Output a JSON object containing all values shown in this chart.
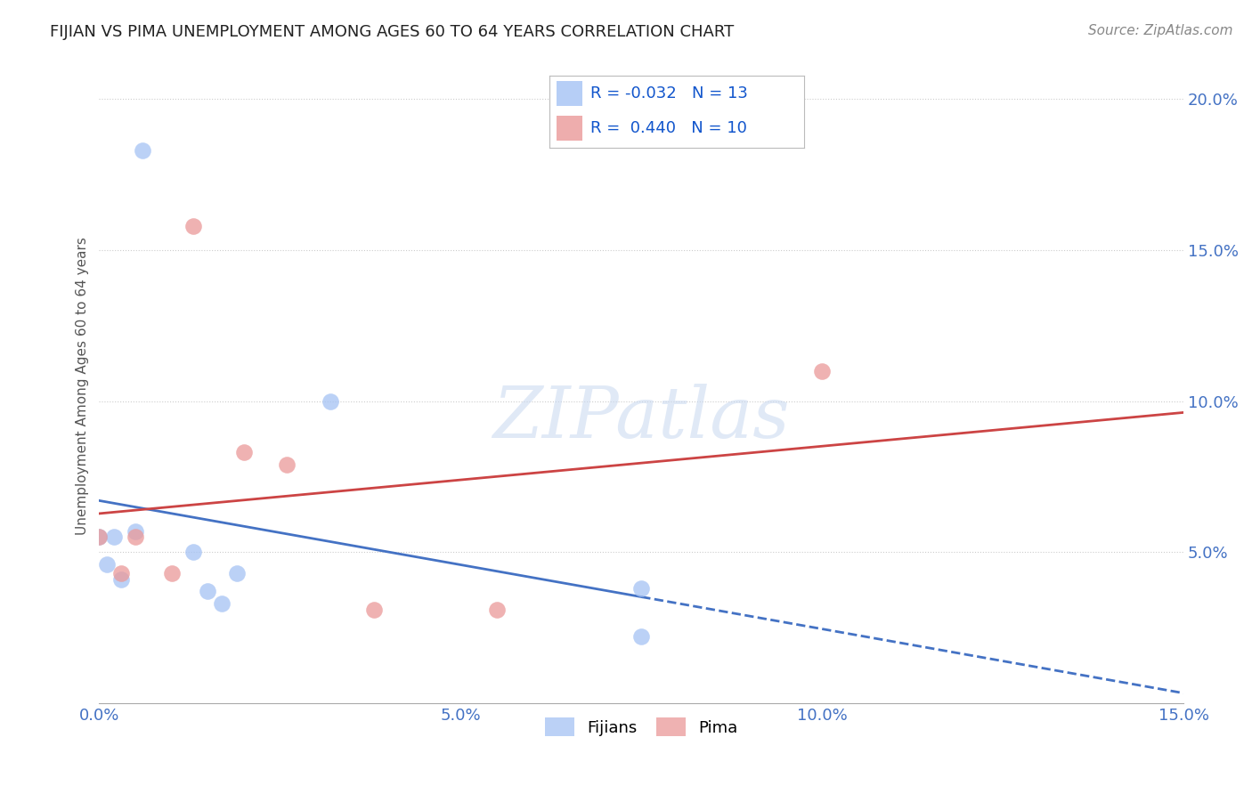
{
  "title": "FIJIAN VS PIMA UNEMPLOYMENT AMONG AGES 60 TO 64 YEARS CORRELATION CHART",
  "source": "Source: ZipAtlas.com",
  "ylabel": "Unemployment Among Ages 60 to 64 years",
  "xmin": 0.0,
  "xmax": 0.15,
  "ymin": 0.0,
  "ymax": 0.21,
  "xticks": [
    0.0,
    0.05,
    0.1,
    0.15
  ],
  "yticks": [
    0.05,
    0.1,
    0.15,
    0.2
  ],
  "fijians_x": [
    0.0,
    0.001,
    0.002,
    0.003,
    0.005,
    0.006,
    0.013,
    0.015,
    0.017,
    0.019,
    0.032,
    0.075,
    0.075
  ],
  "fijians_y": [
    0.055,
    0.046,
    0.055,
    0.041,
    0.057,
    0.183,
    0.05,
    0.037,
    0.033,
    0.043,
    0.1,
    0.022,
    0.038
  ],
  "pima_x": [
    0.0,
    0.003,
    0.005,
    0.01,
    0.013,
    0.02,
    0.026,
    0.038,
    0.055,
    0.1
  ],
  "pima_y": [
    0.055,
    0.043,
    0.055,
    0.043,
    0.158,
    0.083,
    0.079,
    0.031,
    0.031,
    0.11
  ],
  "fijians_r": -0.032,
  "fijians_n": 13,
  "pima_r": 0.44,
  "pima_n": 10,
  "fijians_color": "#a4c2f4",
  "pima_color": "#ea9999",
  "fijians_line_color": "#4472c4",
  "pima_line_color": "#cc4444",
  "fijians_line_solid_end": 0.075,
  "watermark_text": "ZIPatlas",
  "legend_fijians": "Fijians",
  "legend_pima": "Pima",
  "xlabel_color": "#4472c4",
  "ylabel_color": "#555555",
  "right_ytick_color": "#4472c4",
  "title_fontsize": 13,
  "source_fontsize": 11,
  "tick_fontsize": 13,
  "ylabel_fontsize": 11,
  "legend_fontsize": 13
}
